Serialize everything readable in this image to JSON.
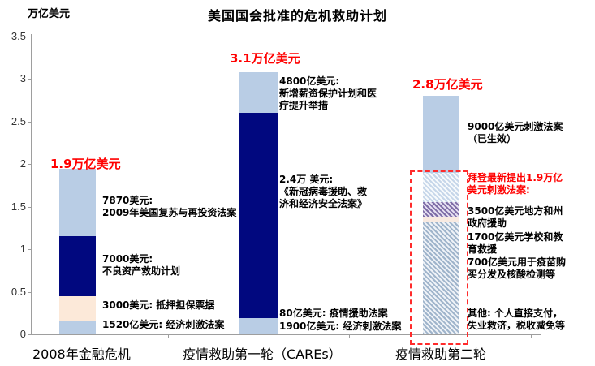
{
  "title": "美国国会批准的危机救助计划",
  "y_axis": {
    "unit": "万亿美元"
  },
  "colors": {
    "red": "#FF0000",
    "navy": "#01087F",
    "light_blue": "#B9CDE5",
    "cream": "#FCE9D9",
    "pale": "#F8EAE1",
    "hatch_gray": "#9FB4CB",
    "hatch_purple": "#7D6CA6",
    "hatch_light_blue": "#C6D6E9",
    "dashed_box": "#FF2B2B",
    "axis": "#9E9E9E"
  },
  "chart_data": {
    "type": "bar",
    "stacked": true,
    "title": "美国国会批准的危机救助计划",
    "ylabel": "万亿美元",
    "ylim": [
      0,
      3.5
    ],
    "grid": false,
    "yticks": [
      3.5,
      3,
      2.5,
      2,
      1.5,
      1,
      0.5,
      0
    ],
    "ytick_labels": [
      "3.5",
      "3",
      "2.5",
      "2",
      "1.5",
      "1",
      "0.5",
      "0"
    ],
    "categories": [
      "2008年金融危机",
      "疫情救助第一轮（CAREs）",
      "疫情救助第二轮"
    ],
    "totals": [
      "1.9万亿美元",
      "3.1万亿美元",
      "2.8万亿美元"
    ],
    "total_values": [
      1.9,
      3.1,
      2.8
    ],
    "bars": [
      {
        "category": "2008年金融危机",
        "total_label": "1.9万亿美元",
        "segments": [
          {
            "label": "1520亿美元: 经济刺激法案",
            "value": 0.152,
            "style": "lightblue"
          },
          {
            "label": "3000美元: 抵押担保票据",
            "value": 0.3,
            "style": "cream"
          },
          {
            "label": "7000美元: 不良资产救助计划",
            "value": 0.7,
            "style": "navy"
          },
          {
            "label": "7870美元: 2009年美国复苏与再投资法案",
            "value": 0.787,
            "style": "lightblue"
          }
        ]
      },
      {
        "category": "疫情救助第一轮（CAREs）",
        "total_label": "3.1万亿美元",
        "segments": [
          {
            "label": "1900亿美元: 经济刺激法案",
            "value": 0.19,
            "style": "lightblue"
          },
          {
            "label": "80亿美元: 疫情援助法案",
            "value": 0.008,
            "style": "navy"
          },
          {
            "label": "2.4万 美元: 《新冠病毒援助、救济和经济安全法案》",
            "value": 2.4,
            "style": "navy"
          },
          {
            "label": "4800亿美元: 新增薪资保护计划和医疗提升举措",
            "value": 0.48,
            "style": "lightblue"
          }
        ]
      },
      {
        "category": "疫情救助第二轮",
        "total_label": "2.8万亿美元",
        "segments": [
          {
            "label": "其他: 个人直接支付，失业救济，税收减免等",
            "value": 1.31,
            "style": "hatch-gray"
          },
          {
            "label": "700亿美元用于疫苗购买分发及核酸检测等",
            "value": 0.07,
            "style": "pale"
          },
          {
            "label": "1700亿美元学校和教育救援",
            "value": 0.17,
            "style": "hatch-purple"
          },
          {
            "label": "3500亿美元地方和州政府援助",
            "value": 0.35,
            "style": "hatch-lightblue"
          },
          {
            "label": "9000亿美元刺激法案（已生效）",
            "value": 0.9,
            "style": "lightblue"
          }
        ]
      }
    ]
  },
  "annotations": {
    "bar1_seg4": "7870美元:\n2009年美国复苏与再投资法案",
    "bar1_seg3": "7000美元:\n不良资产救助计划",
    "bar1_seg2": "3000美元: 抵押担保票据",
    "bar1_seg1": "1520亿美元: 经济刺激法案",
    "bar2_seg4": "4800亿美元:\n新增薪资保护计划和医\n疗提升举措",
    "bar2_seg3": "2.4万 美元:\n《新冠病毒援助、救\n济和经济安全法案》",
    "bar2_seg2": "80亿美元: 疫情援助法案",
    "bar2_seg1": "1900亿美元: 经济刺激法案",
    "bar3_seg5": "9000亿美元刺激法案\n（已生效）",
    "bar3_proposal_heading": "拜登最新提出1.9万亿\n美元刺激法案:",
    "bar3_item1": "3500亿美元地方和州\n政府援助",
    "bar3_item2": "1700亿美元学校和教\n育救援",
    "bar3_item3": "700亿美元用于疫苗购\n买分发及核酸检测等",
    "bar3_other": "其他: 个人直接支付，\n失业救济，税收减免等"
  }
}
